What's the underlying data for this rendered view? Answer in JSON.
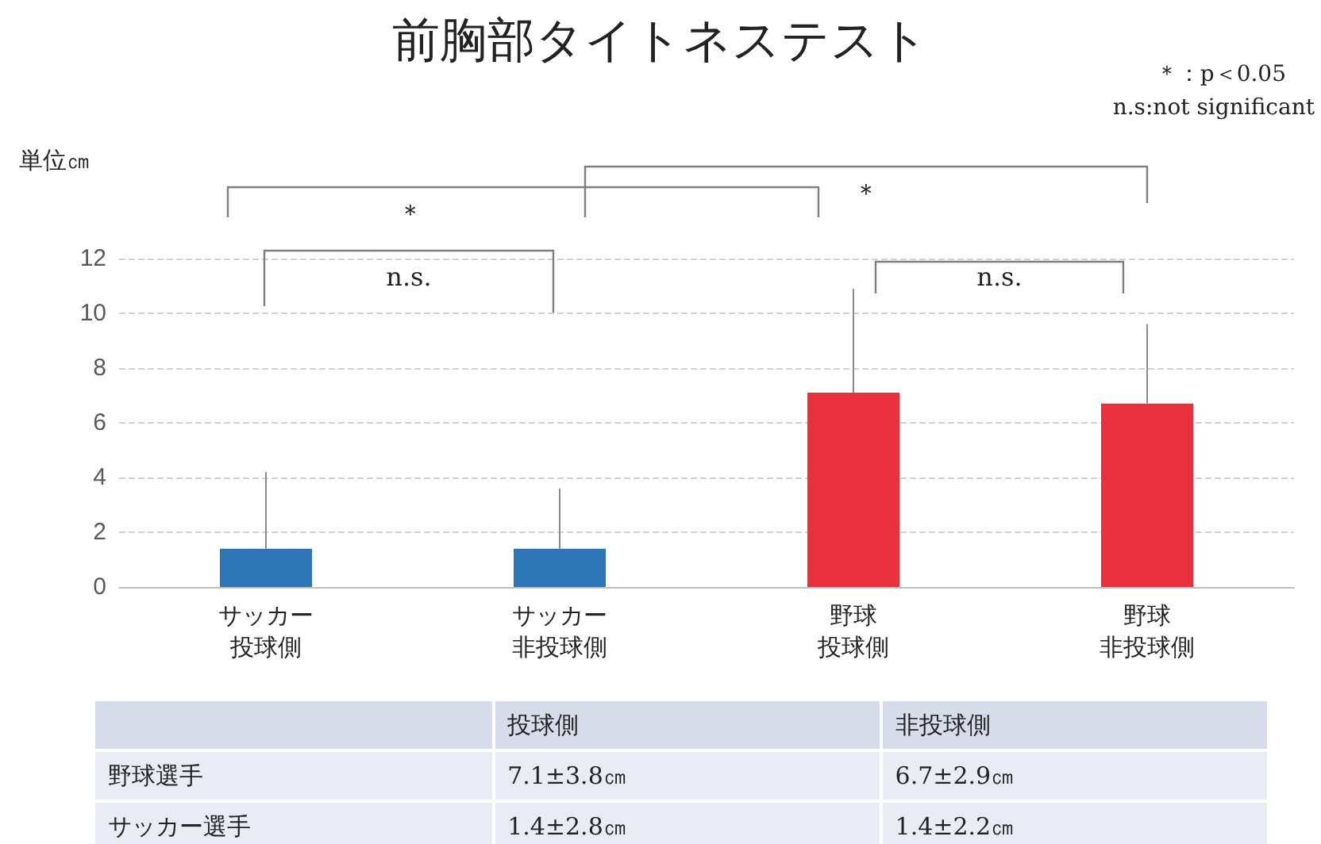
{
  "chart_data": [
    {
      "type": "bar",
      "title": "前胸部タイトネステスト",
      "ylabel": "単位㎝",
      "categories": [
        "サッカー投球側",
        "サッカー非投球側",
        "野球投球側",
        "野球非投球側"
      ],
      "values": [
        1.4,
        1.4,
        7.1,
        6.7
      ],
      "colors": [
        "#2e75b6",
        "#2e75b6",
        "#e8303f",
        "#e8303f"
      ],
      "errors": [
        [
          1.4,
          4.2
        ],
        [
          1.4,
          3.6
        ],
        [
          7.1,
          10.9
        ],
        [
          6.7,
          9.6
        ]
      ],
      "ylim": [
        0,
        12
      ],
      "yticks": [
        0,
        2,
        4,
        6,
        8,
        10,
        12
      ],
      "grid": "y",
      "annotations": [
        "＊：p＜0.05",
        "n.s:not significant",
        "＊",
        "＊",
        "n.s.",
        "n.s."
      ]
    },
    {
      "type": "other",
      "annotations": [
        "投球側",
        "非投球側",
        "野球選手",
        "サッカー選手",
        "7.1±3.8㎝",
        "6.7±2.9㎝",
        "1.4±2.8㎝",
        "1.4±2.2㎝"
      ]
    }
  ]
}
